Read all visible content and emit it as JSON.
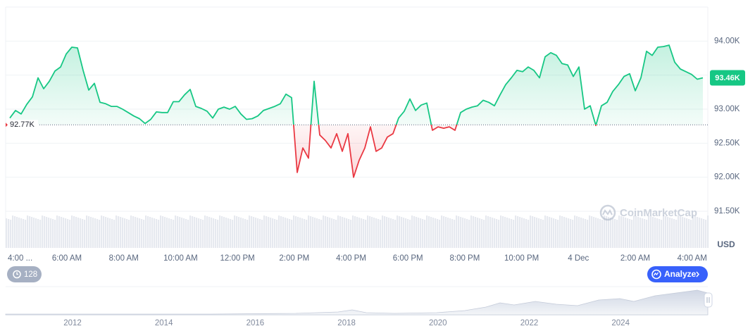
{
  "chart_data": {
    "type": "line",
    "ylim": [
      91500,
      94500
    ],
    "yticks": [
      {
        "value": 94000,
        "label": "94.00K"
      },
      {
        "value": 93500,
        "label": "93.50K"
      },
      {
        "value": 93000,
        "label": "93.00K"
      },
      {
        "value": 92500,
        "label": "92.50K"
      },
      {
        "value": 92000,
        "label": "92.00K"
      },
      {
        "value": 91500,
        "label": "91.50K"
      }
    ],
    "grid": true,
    "x_labels": [
      "4:00 ...",
      "6:00 AM",
      "8:00 AM",
      "10:00 AM",
      "12:00 PM",
      "2:00 PM",
      "4:00 PM",
      "6:00 PM",
      "8:00 PM",
      "10:00 PM",
      "4 Dec",
      "2:00 AM",
      "4:00 AM"
    ],
    "baseline": {
      "value": 92770,
      "label": "92.77K"
    },
    "last_price": {
      "value": 93460,
      "label": "93.46K"
    },
    "currency": "USD",
    "up_color": "#16c784",
    "down_color": "#ea3943",
    "values": [
      92870,
      92980,
      92930,
      93070,
      93180,
      93460,
      93300,
      93410,
      93560,
      93620,
      93810,
      93910,
      93900,
      93570,
      93280,
      93380,
      93100,
      93080,
      93040,
      93040,
      93000,
      92950,
      92900,
      92860,
      92790,
      92850,
      92960,
      92950,
      92950,
      93110,
      93110,
      93210,
      93290,
      93040,
      93010,
      92970,
      92870,
      93000,
      93030,
      93000,
      93040,
      92930,
      92850,
      92860,
      92900,
      92980,
      93010,
      93040,
      93080,
      93220,
      93170,
      92070,
      92430,
      92280,
      93410,
      92620,
      92540,
      92430,
      92640,
      92380,
      92640,
      92000,
      92250,
      92430,
      92740,
      92380,
      92430,
      92590,
      92640,
      92870,
      92970,
      93150,
      92980,
      93060,
      93090,
      92690,
      92740,
      92720,
      92740,
      92690,
      92950,
      93000,
      93030,
      93050,
      93130,
      93100,
      93050,
      93210,
      93360,
      93460,
      93570,
      93550,
      93620,
      93570,
      93460,
      93770,
      93830,
      93790,
      93670,
      93650,
      93480,
      93620,
      93000,
      93050,
      92760,
      93050,
      93100,
      93260,
      93360,
      93480,
      93520,
      93270,
      93460,
      93850,
      93790,
      93910,
      93920,
      93940,
      93690,
      93590,
      93550,
      93510,
      93440,
      93460
    ]
  },
  "navigator": {
    "years": [
      "2012",
      "2014",
      "2016",
      "2018",
      "2020",
      "2022",
      "2024"
    ]
  },
  "ui": {
    "watermark": "CoinMarketCap",
    "count_badge": "128",
    "analyze_button": "Analyze"
  }
}
